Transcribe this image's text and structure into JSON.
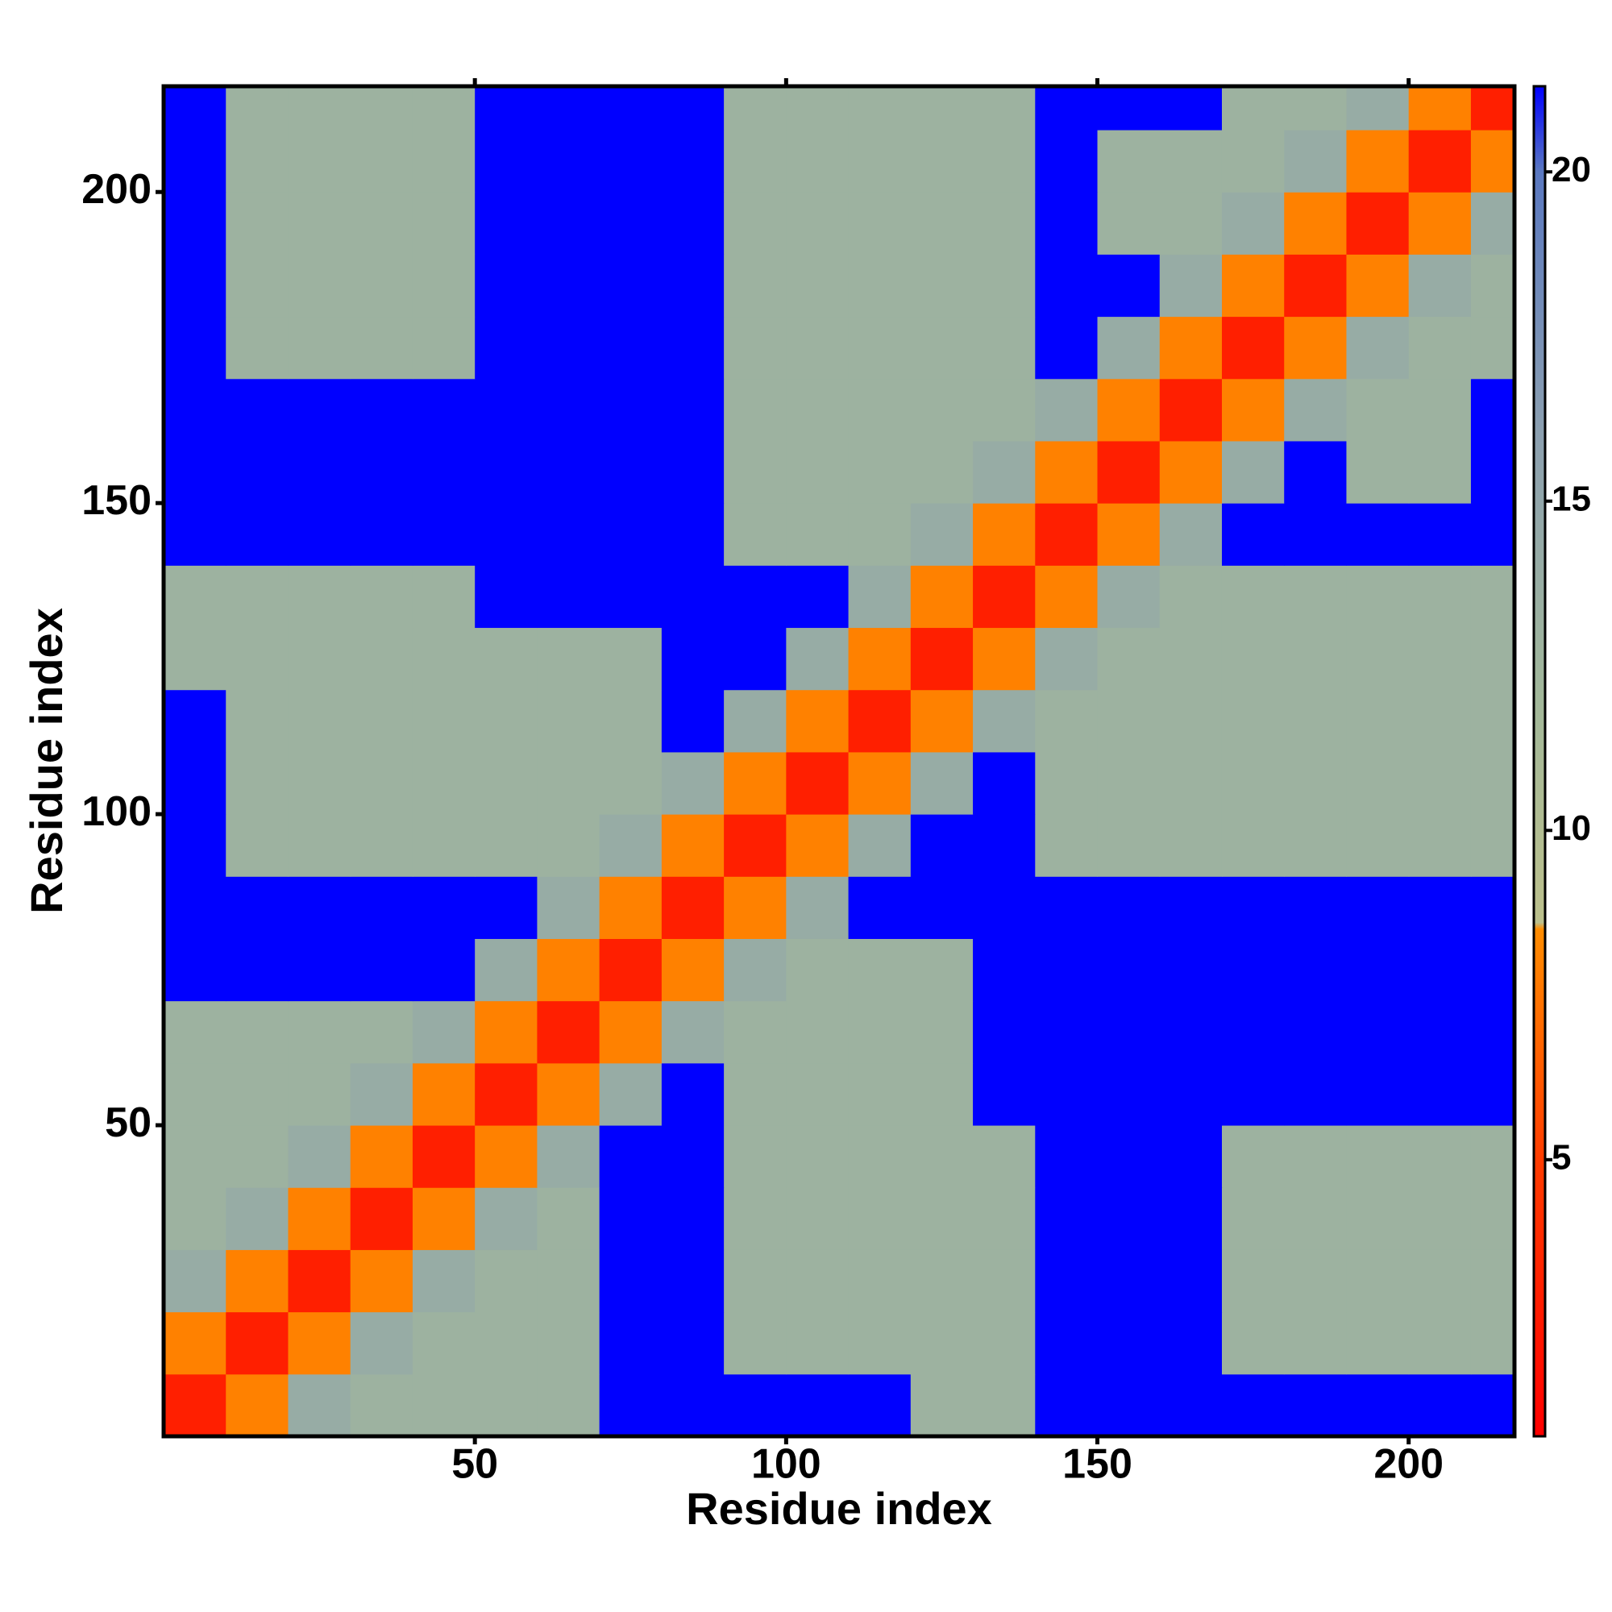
{
  "chart_data": {
    "type": "heatmap",
    "x_label": "Residue index",
    "y_label": "Residue index",
    "x": [
      5,
      15,
      25,
      35,
      45,
      55,
      65,
      75,
      85,
      95,
      105,
      115,
      125,
      135,
      145,
      155,
      165,
      175,
      185,
      195,
      205,
      215
    ],
    "y": [
      5,
      15,
      25,
      35,
      45,
      55,
      65,
      75,
      85,
      95,
      105,
      115,
      125,
      135,
      145,
      155,
      165,
      175,
      185,
      195,
      205,
      215
    ],
    "z": [
      [
        3,
        8,
        14,
        13,
        13,
        13,
        13,
        25,
        25,
        25,
        25,
        25,
        13,
        13,
        25,
        25,
        25,
        25,
        25,
        25,
        25,
        25
      ],
      [
        8,
        3,
        8,
        14,
        13,
        13,
        13,
        25,
        25,
        13,
        13,
        13,
        13,
        13,
        25,
        25,
        25,
        13,
        13,
        13,
        13,
        13
      ],
      [
        14,
        8,
        3,
        8,
        14,
        13,
        13,
        25,
        25,
        13,
        13,
        13,
        13,
        13,
        25,
        25,
        25,
        13,
        13,
        13,
        13,
        13
      ],
      [
        13,
        14,
        8,
        3,
        8,
        14,
        13,
        25,
        25,
        13,
        13,
        13,
        13,
        13,
        25,
        25,
        25,
        13,
        13,
        13,
        13,
        13
      ],
      [
        13,
        13,
        14,
        8,
        3,
        8,
        14,
        25,
        25,
        13,
        13,
        13,
        13,
        13,
        25,
        25,
        25,
        13,
        13,
        13,
        13,
        13
      ],
      [
        13,
        13,
        13,
        14,
        8,
        3,
        8,
        14,
        25,
        13,
        13,
        13,
        13,
        25,
        25,
        25,
        25,
        25,
        25,
        25,
        25,
        25
      ],
      [
        13,
        13,
        13,
        13,
        14,
        8,
        3,
        8,
        14,
        13,
        13,
        13,
        13,
        25,
        25,
        25,
        25,
        25,
        25,
        25,
        25,
        25
      ],
      [
        25,
        25,
        25,
        25,
        25,
        14,
        8,
        3,
        8,
        14,
        13,
        13,
        13,
        25,
        25,
        25,
        25,
        25,
        25,
        25,
        25,
        25
      ],
      [
        25,
        25,
        25,
        25,
        25,
        25,
        14,
        8,
        3,
        8,
        14,
        25,
        25,
        25,
        25,
        25,
        25,
        25,
        25,
        25,
        25,
        25
      ],
      [
        25,
        13,
        13,
        13,
        13,
        13,
        13,
        14,
        8,
        3,
        8,
        14,
        25,
        25,
        13,
        13,
        13,
        13,
        13,
        13,
        13,
        13
      ],
      [
        25,
        13,
        13,
        13,
        13,
        13,
        13,
        13,
        14,
        8,
        3,
        8,
        14,
        25,
        13,
        13,
        13,
        13,
        13,
        13,
        13,
        13
      ],
      [
        25,
        13,
        13,
        13,
        13,
        13,
        13,
        13,
        25,
        14,
        8,
        3,
        8,
        14,
        13,
        13,
        13,
        13,
        13,
        13,
        13,
        13
      ],
      [
        13,
        13,
        13,
        13,
        13,
        13,
        13,
        13,
        25,
        25,
        14,
        8,
        3,
        8,
        14,
        13,
        13,
        13,
        13,
        13,
        13,
        13
      ],
      [
        13,
        13,
        13,
        13,
        13,
        25,
        25,
        25,
        25,
        25,
        25,
        14,
        8,
        3,
        8,
        14,
        13,
        13,
        13,
        13,
        13,
        13
      ],
      [
        25,
        25,
        25,
        25,
        25,
        25,
        25,
        25,
        25,
        13,
        13,
        13,
        14,
        8,
        3,
        8,
        14,
        25,
        25,
        25,
        25,
        25
      ],
      [
        25,
        25,
        25,
        25,
        25,
        25,
        25,
        25,
        25,
        13,
        13,
        13,
        13,
        14,
        8,
        3,
        8,
        14,
        25,
        13,
        13,
        25
      ],
      [
        25,
        25,
        25,
        25,
        25,
        25,
        25,
        25,
        25,
        13,
        13,
        13,
        13,
        13,
        14,
        8,
        3,
        8,
        14,
        13,
        13,
        25
      ],
      [
        25,
        13,
        13,
        13,
        13,
        25,
        25,
        25,
        25,
        13,
        13,
        13,
        13,
        13,
        25,
        14,
        8,
        3,
        8,
        14,
        13,
        13
      ],
      [
        25,
        13,
        13,
        13,
        13,
        25,
        25,
        25,
        25,
        13,
        13,
        13,
        13,
        13,
        25,
        25,
        14,
        8,
        3,
        8,
        14,
        13
      ],
      [
        25,
        13,
        13,
        13,
        13,
        25,
        25,
        25,
        25,
        13,
        13,
        13,
        13,
        13,
        25,
        13,
        13,
        14,
        8,
        3,
        8,
        14
      ],
      [
        25,
        13,
        13,
        13,
        13,
        25,
        25,
        25,
        25,
        13,
        13,
        13,
        13,
        13,
        25,
        13,
        13,
        13,
        14,
        8,
        3,
        8
      ],
      [
        25,
        13,
        13,
        13,
        13,
        25,
        25,
        25,
        25,
        13,
        13,
        13,
        13,
        13,
        25,
        25,
        25,
        13,
        13,
        14,
        8,
        3
      ]
    ],
    "xlim": [
      0,
      217
    ],
    "ylim": [
      0,
      217
    ],
    "xticks": [
      50,
      100,
      150,
      200
    ],
    "yticks": [
      50,
      100,
      150,
      200
    ],
    "clim": [
      0.8,
      21.3
    ],
    "cticks": [
      5,
      10,
      15,
      20
    ],
    "colorscale": [
      [
        0.8,
        "#ff0000"
      ],
      [
        5,
        "#ff3c00"
      ],
      [
        8.5,
        "#ff8c00"
      ],
      [
        8.6,
        "#bcc08c"
      ],
      [
        12,
        "#a2b89a"
      ],
      [
        16,
        "#8ca0b0"
      ],
      [
        20,
        "#5a78c0"
      ],
      [
        21.3,
        "#0000ff"
      ]
    ]
  }
}
